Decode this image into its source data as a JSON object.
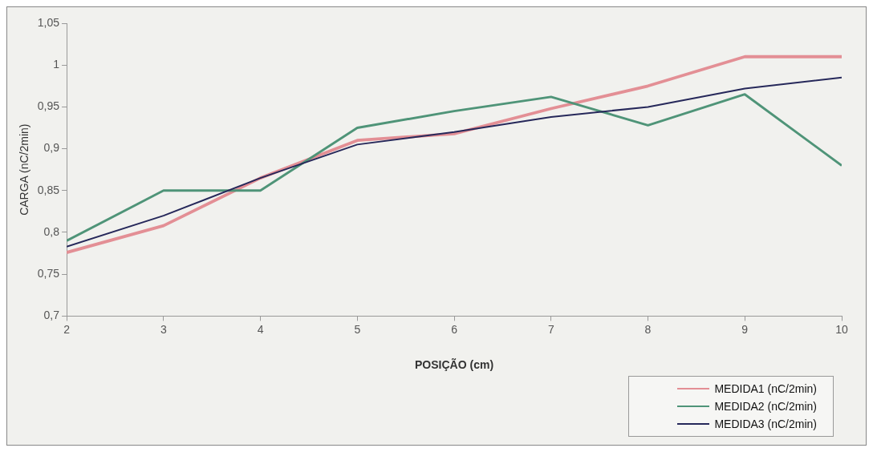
{
  "chart_data": {
    "type": "line",
    "xlabel": "POSIÇÃO (cm)",
    "ylabel": "CARGA (nC/2min)",
    "x": [
      2,
      3,
      4,
      5,
      6,
      7,
      8,
      9,
      10
    ],
    "xlim": [
      2,
      10
    ],
    "xticks": [
      2,
      3,
      4,
      5,
      6,
      7,
      8,
      9,
      10
    ],
    "ylim": [
      0.7,
      1.05
    ],
    "yticks": [
      {
        "value": 0.7,
        "label": "0,7"
      },
      {
        "value": 0.75,
        "label": "0,75"
      },
      {
        "value": 0.8,
        "label": "0,8"
      },
      {
        "value": 0.85,
        "label": "0,85"
      },
      {
        "value": 0.9,
        "label": "0,9"
      },
      {
        "value": 0.95,
        "label": "0,95"
      },
      {
        "value": 1,
        "label": "1"
      },
      {
        "value": 1.05,
        "label": "1,05"
      }
    ],
    "grid": false,
    "legend": "bottom right",
    "marker": "none",
    "line_style": "solid",
    "series": [
      {
        "name": "MEDIDA1 (nC/2min)",
        "color": "#e38f95",
        "values": [
          0.776,
          0.808,
          0.865,
          0.91,
          0.918,
          0.948,
          0.975,
          1.01,
          1.01
        ]
      },
      {
        "name": "MEDIDA2 (nC/2min)",
        "color": "#4f9478",
        "values": [
          0.79,
          0.85,
          0.85,
          0.925,
          0.945,
          0.962,
          0.928,
          0.965,
          0.88
        ]
      },
      {
        "name": "MEDIDA3 (nC/2min)",
        "color": "#26285a",
        "values": [
          0.783,
          0.82,
          0.865,
          0.905,
          0.92,
          0.938,
          0.95,
          0.972,
          0.985
        ]
      }
    ]
  }
}
